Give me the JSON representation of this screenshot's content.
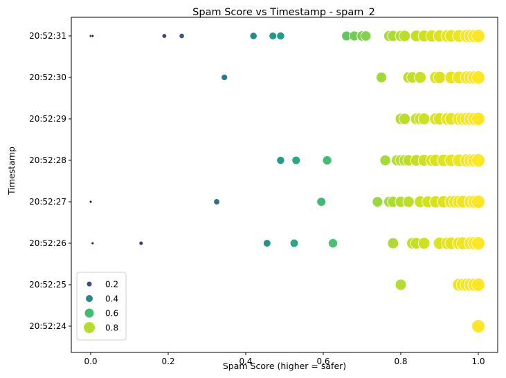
{
  "chart_data": {
    "type": "scatter",
    "title": "Spam Score vs Timestamp - spam_2",
    "xlabel": "Spam Score (higher = safer)",
    "ylabel": "Timestamp",
    "xlim": [
      -0.05,
      1.05
    ],
    "x_ticks": [
      0.0,
      0.2,
      0.4,
      0.6,
      0.8,
      1.0
    ],
    "x_tick_labels": [
      "0.0",
      "0.2",
      "0.4",
      "0.6",
      "0.8",
      "1.0"
    ],
    "y_categories": [
      "20:52:24",
      "20:52:25",
      "20:52:26",
      "20:52:27",
      "20:52:28",
      "20:52:29",
      "20:52:30",
      "20:52:31"
    ],
    "grid": false,
    "legend": {
      "placement": "lower-left",
      "entries": [
        {
          "label": "0.2",
          "value": 0.2
        },
        {
          "label": "0.4",
          "value": 0.4
        },
        {
          "label": "0.6",
          "value": 0.6
        },
        {
          "label": "0.8",
          "value": 0.8
        }
      ]
    },
    "colormap": "viridis",
    "points": [
      {
        "y": "20:52:31",
        "x": [
          0.0,
          0.005,
          0.19,
          0.235,
          0.42,
          0.47,
          0.49,
          0.66,
          0.68,
          0.7,
          0.71,
          0.77,
          0.78,
          0.8,
          0.81,
          0.84,
          0.86,
          0.88,
          0.9,
          0.92,
          0.93,
          0.95,
          0.97,
          0.98,
          0.99,
          1.0
        ]
      },
      {
        "y": "20:52:30",
        "x": [
          0.345,
          0.75,
          0.82,
          0.83,
          0.85,
          0.89,
          0.9,
          0.93,
          0.95,
          0.97,
          0.98,
          0.99,
          1.0
        ]
      },
      {
        "y": "20:52:29",
        "x": [
          0.8,
          0.81,
          0.84,
          0.85,
          0.86,
          0.89,
          0.9,
          0.92,
          0.93,
          0.95,
          0.96,
          0.97,
          0.98,
          0.99,
          1.0
        ]
      },
      {
        "y": "20:52:28",
        "x": [
          0.49,
          0.53,
          0.61,
          0.76,
          0.79,
          0.8,
          0.81,
          0.82,
          0.84,
          0.86,
          0.88,
          0.89,
          0.91,
          0.93,
          0.95,
          0.97,
          0.98,
          0.99,
          1.0
        ]
      },
      {
        "y": "20:52:27",
        "x": [
          0.0,
          0.325,
          0.595,
          0.74,
          0.77,
          0.78,
          0.8,
          0.82,
          0.85,
          0.87,
          0.89,
          0.91,
          0.93,
          0.94,
          0.95,
          0.96,
          0.98,
          0.99,
          1.0
        ]
      },
      {
        "y": "20:52:26",
        "x": [
          0.005,
          0.13,
          0.455,
          0.525,
          0.625,
          0.78,
          0.83,
          0.84,
          0.86,
          0.9,
          0.92,
          0.93,
          0.95,
          0.96,
          0.98,
          0.99,
          1.0
        ]
      },
      {
        "y": "20:52:25",
        "x": [
          0.8,
          0.95,
          0.96,
          0.97,
          0.98,
          0.99,
          1.0
        ]
      },
      {
        "y": "20:52:24",
        "x": [
          1.0
        ]
      }
    ]
  }
}
